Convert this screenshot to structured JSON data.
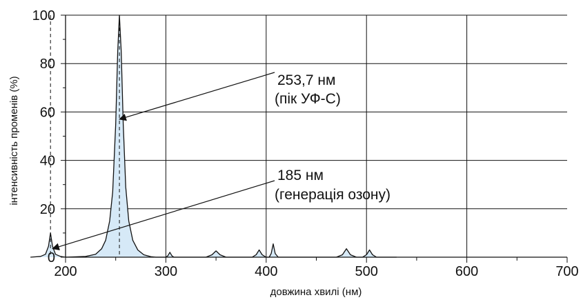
{
  "chart_data": {
    "type": "line",
    "title": "",
    "xlabel": "довжина хвилі (нм)",
    "ylabel": "інтенсивність променів (%)",
    "xlim": [
      200,
      700
    ],
    "ylim": [
      0,
      100
    ],
    "x_ticks": [
      200,
      300,
      400,
      500,
      600,
      700
    ],
    "y_ticks": [
      0,
      20,
      40,
      60,
      80,
      100
    ],
    "x_tick_labels": [
      "200",
      "300",
      "400",
      "500",
      "600",
      "700"
    ],
    "y_tick_labels": [
      "0",
      "20",
      "40",
      "60",
      "80",
      "100"
    ],
    "vertical_grid": [
      300,
      400,
      500,
      600
    ],
    "horizontal_grid": [
      20,
      40,
      60,
      80,
      100
    ],
    "dashed_markers": [
      185,
      253.7
    ],
    "fill_color": "#d6e9f7",
    "series": [
      {
        "points": [
          [
            165,
            0
          ],
          [
            175,
            0.3
          ],
          [
            180,
            1.2
          ],
          [
            183,
            4.5
          ],
          [
            185,
            10
          ],
          [
            187,
            4.5
          ],
          [
            190,
            1.2
          ],
          [
            195,
            0.3
          ],
          [
            200,
            0
          ],
          [
            220,
            0.3
          ],
          [
            230,
            1.2
          ],
          [
            236,
            3.5
          ],
          [
            240,
            7
          ],
          [
            244,
            15
          ],
          [
            247,
            27
          ],
          [
            250,
            55
          ],
          [
            252,
            85
          ],
          [
            253.7,
            100
          ],
          [
            255.5,
            85
          ],
          [
            257.5,
            55
          ],
          [
            260,
            29
          ],
          [
            263,
            15
          ],
          [
            267,
            7
          ],
          [
            272,
            3
          ],
          [
            278,
            1
          ],
          [
            285,
            0.2
          ],
          [
            290,
            0
          ],
          [
            300,
            0
          ],
          [
            302,
            0.6
          ],
          [
            304,
            2
          ],
          [
            306,
            0.6
          ],
          [
            308,
            0
          ],
          [
            340,
            0
          ],
          [
            346,
            1
          ],
          [
            350,
            2.6
          ],
          [
            354,
            1
          ],
          [
            360,
            0
          ],
          [
            386,
            0
          ],
          [
            390,
            1
          ],
          [
            393,
            3
          ],
          [
            396,
            1
          ],
          [
            400,
            0
          ],
          [
            403,
            0
          ],
          [
            405,
            1.5
          ],
          [
            407,
            5.5
          ],
          [
            409,
            1.5
          ],
          [
            412,
            0
          ],
          [
            470,
            0
          ],
          [
            476,
            1
          ],
          [
            480,
            3.5
          ],
          [
            484,
            1
          ],
          [
            490,
            0
          ],
          [
            496,
            0
          ],
          [
            500,
            1
          ],
          [
            503,
            3
          ],
          [
            506,
            1
          ],
          [
            510,
            0
          ],
          [
            530,
            0
          ]
        ]
      }
    ],
    "annotations": [
      {
        "line1": "253,7 нм",
        "line2": "(пік УФ-С)",
        "target_x": 253.7,
        "target_y": 57
      },
      {
        "line1": "185 нм",
        "line2": "(генерація озону)",
        "target_x": 187,
        "target_y": 3.5
      }
    ]
  }
}
